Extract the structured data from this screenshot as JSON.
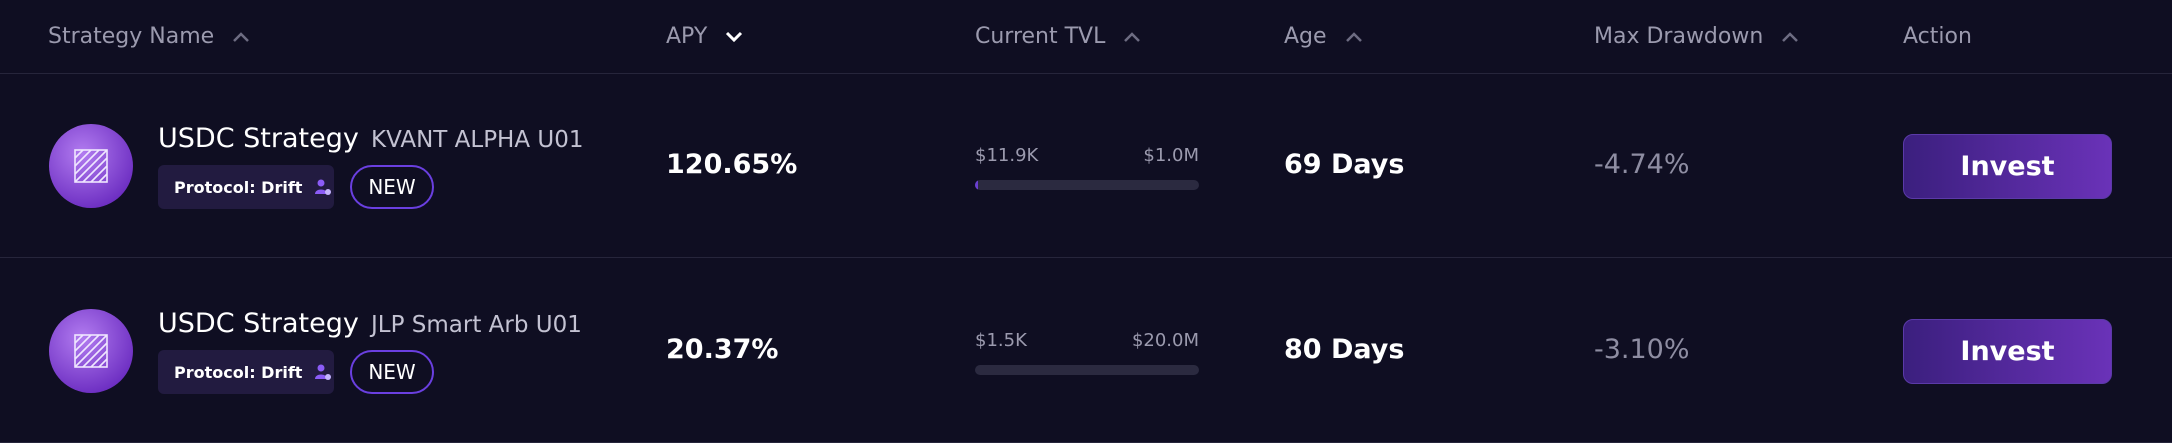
{
  "header": {
    "columns": [
      "Strategy Name",
      "APY",
      "Current TVL",
      "Age",
      "Max Drawdown",
      "Action"
    ]
  },
  "table": {
    "rows": [
      {
        "name": "USDC Strategy",
        "subtitle": "KVANT ALPHA U01",
        "protocol": "Protocol: Drift",
        "badge": "NEW",
        "apy": "120.65%",
        "tvl": {
          "value": 11900,
          "label": "$11.9K"
        },
        "tvl_cap": {
          "value": 1000000,
          "label": "$1.0M"
        },
        "age": "69 Days",
        "max_drawdown": "-4.74%",
        "action": "Invest"
      },
      {
        "name": "USDC Strategy",
        "subtitle": "JLP Smart Arb U01",
        "protocol": "Protocol: Drift",
        "badge": "NEW",
        "apy": "20.37%",
        "tvl": {
          "value": 1500,
          "label": "$1.5K"
        },
        "tvl_cap": {
          "value": 20000000,
          "label": "$20.0M"
        },
        "age": "80 Days",
        "max_drawdown": "-3.10%",
        "action": "Invest"
      }
    ]
  }
}
